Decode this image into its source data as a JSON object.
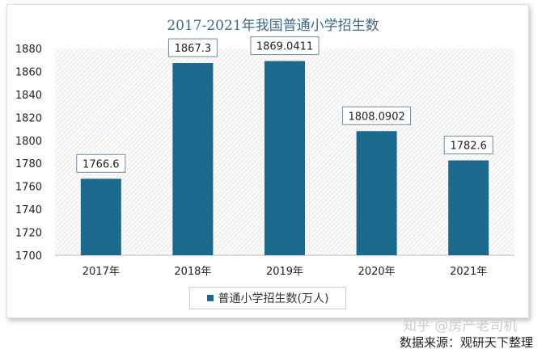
{
  "chart_data": {
    "type": "bar",
    "title": "2017-2021年我国普通小学招生数",
    "categories": [
      "2017年",
      "2018年",
      "2019年",
      "2020年",
      "2021年"
    ],
    "series": [
      {
        "name": "普通小学招生数(万人)",
        "values": [
          1766.6,
          1867.3,
          1869.0411,
          1808.0902,
          1782.6
        ]
      }
    ],
    "data_labels": [
      "1766.6",
      "1867.3",
      "1869.0411",
      "1808.0902",
      "1782.6"
    ],
    "yticks": [
      "1700",
      "1720",
      "1740",
      "1760",
      "1780",
      "1800",
      "1820",
      "1840",
      "1860",
      "1880"
    ],
    "ylim": [
      1700,
      1880
    ],
    "xlabel": "",
    "ylabel": "",
    "legend": "bottom",
    "color": "#1b6a8d"
  },
  "watermark": "知乎 @房产老司机",
  "source": "数据来源：观研天下整理"
}
